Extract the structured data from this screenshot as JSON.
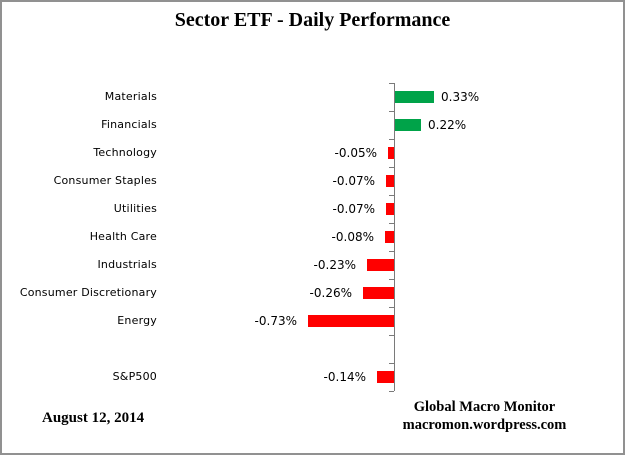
{
  "chart_data": {
    "type": "bar",
    "orientation": "horizontal",
    "title": "Sector ETF - Daily Performance",
    "categories": [
      "Materials",
      "Financials",
      "Technology",
      "Consumer Staples",
      "Utilities",
      "Health Care",
      "Industrials",
      "Consumer Discretionary",
      "Energy",
      "",
      "S&P500"
    ],
    "values": [
      0.33,
      0.22,
      -0.05,
      -0.07,
      -0.07,
      -0.08,
      -0.23,
      -0.26,
      -0.73,
      null,
      -0.14
    ],
    "value_labels": [
      "0.33%",
      "0.22%",
      "-0.05%",
      "-0.07%",
      "-0.07%",
      "-0.08%",
      "-0.23%",
      "-0.26%",
      "-0.73%",
      null,
      "-0.14%"
    ],
    "unit": "%",
    "baseline": 0,
    "grid": false,
    "legend": false,
    "value_labels_position": "outside-bar-end",
    "positive_color": "#00A349",
    "negative_color": "#FF0000",
    "axis_color": "#7a7a7a"
  },
  "footer": {
    "date": "August 12, 2014",
    "credit_line1": "Global Macro Monitor",
    "credit_line2": "macromon.wordpress.com"
  }
}
